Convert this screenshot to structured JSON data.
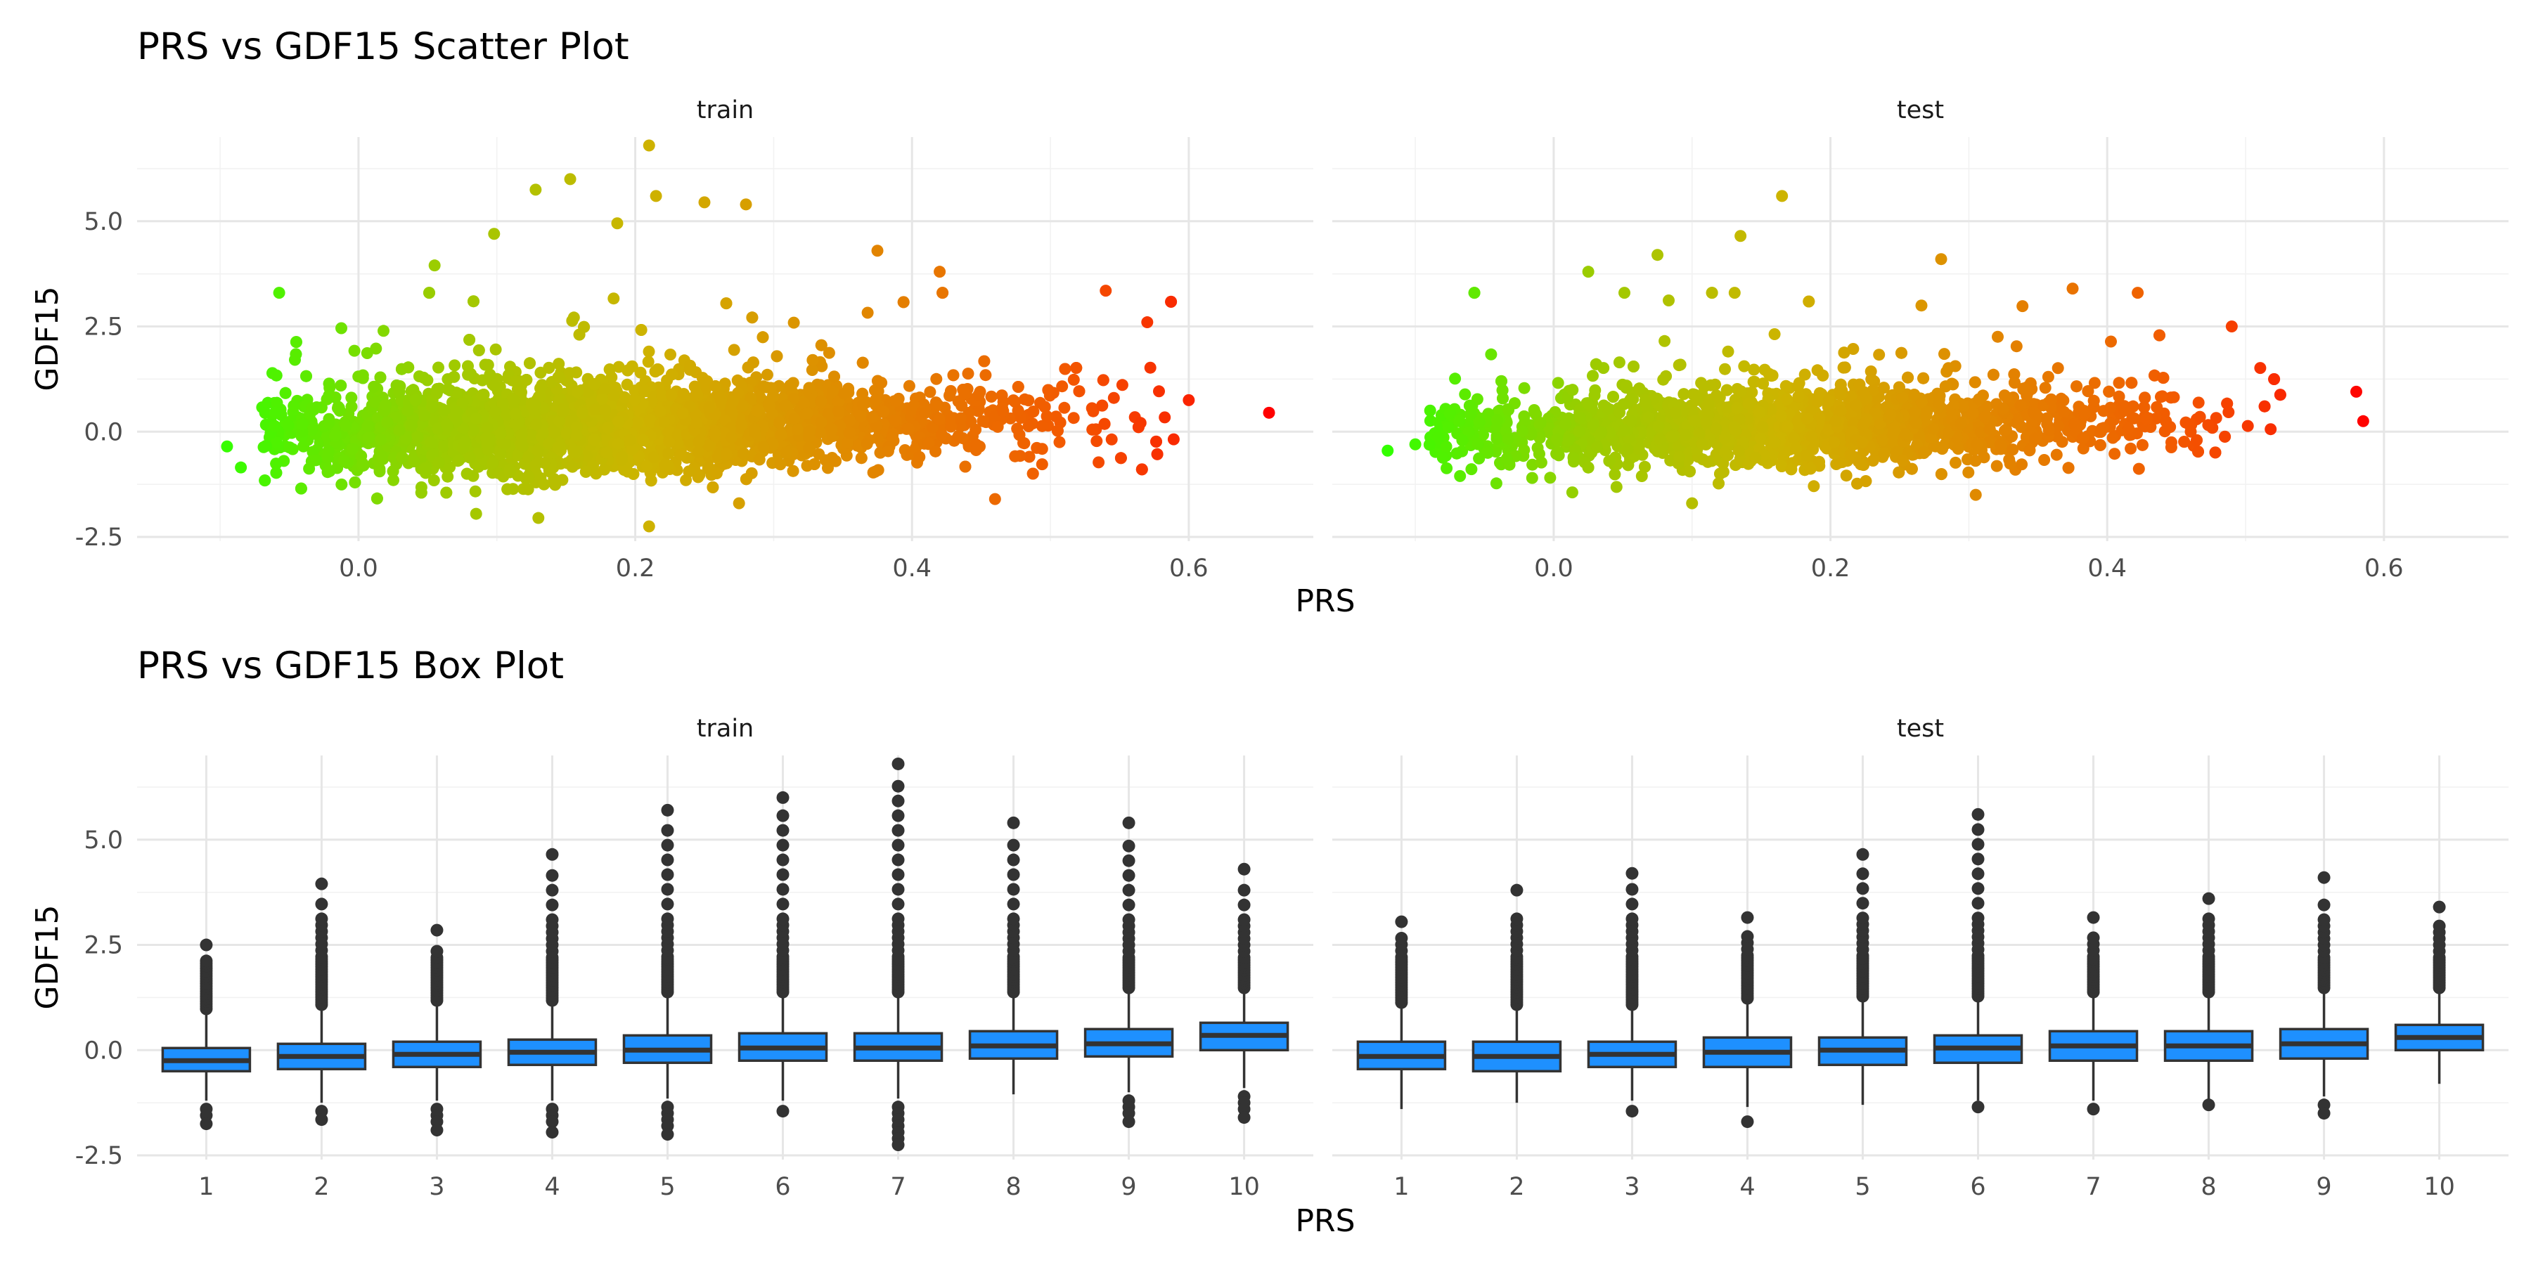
{
  "chart_data": [
    {
      "type": "scatter",
      "title": "PRS vs GDF15 Scatter Plot",
      "xlabel": "PRS",
      "ylabel": "GDF15",
      "facets": [
        "train",
        "test"
      ],
      "xlim": [
        -0.16,
        0.69
      ],
      "ylim": [
        -2.6,
        7.0
      ],
      "xticks": [
        0.0,
        0.2,
        0.4,
        0.6
      ],
      "xtick_labels": [
        "0.0",
        "0.2",
        "0.4",
        "0.6"
      ],
      "yticks": [
        -2.5,
        0.0,
        2.5,
        5.0
      ],
      "ytick_labels": [
        "-2.5",
        "0.0",
        "2.5",
        "5.0"
      ],
      "grid": true,
      "color_gradient": [
        "#33ff00",
        "#9acd00",
        "#cdb400",
        "#e08a00",
        "#f25a00",
        "#ff0000"
      ],
      "series": [
        {
          "facet": "train",
          "x_range": [
            -0.1,
            0.66
          ],
          "y_center": 0.1,
          "y_slope": 0.6,
          "y_spread": 0.55,
          "outliers": [
            {
              "x": 0.21,
              "y": 6.8
            },
            {
              "x": 0.153,
              "y": 6.0
            },
            {
              "x": 0.128,
              "y": 5.75
            },
            {
              "x": 0.215,
              "y": 5.6
            },
            {
              "x": 0.25,
              "y": 5.45
            },
            {
              "x": 0.28,
              "y": 5.4
            },
            {
              "x": 0.187,
              "y": 4.95
            },
            {
              "x": 0.098,
              "y": 4.7
            },
            {
              "x": 0.375,
              "y": 4.3
            },
            {
              "x": 0.055,
              "y": 3.95
            },
            {
              "x": 0.42,
              "y": 3.8
            },
            {
              "x": 0.54,
              "y": 3.35
            },
            {
              "x": 0.57,
              "y": 2.6
            },
            {
              "x": 0.6,
              "y": 0.75
            },
            {
              "x": 0.658,
              "y": 0.45
            },
            {
              "x": -0.095,
              "y": -0.35
            },
            {
              "x": -0.085,
              "y": -0.85
            },
            {
              "x": 0.21,
              "y": -2.25
            },
            {
              "x": 0.13,
              "y": -2.05
            },
            {
              "x": 0.085,
              "y": -1.95
            },
            {
              "x": 0.46,
              "y": -1.6
            },
            {
              "x": 0.275,
              "y": -1.7
            }
          ]
        },
        {
          "facet": "test",
          "x_range": [
            -0.12,
            0.59
          ],
          "y_center": 0.1,
          "y_slope": 0.6,
          "y_spread": 0.5,
          "outliers": [
            {
              "x": 0.165,
              "y": 5.6
            },
            {
              "x": 0.135,
              "y": 4.65
            },
            {
              "x": 0.075,
              "y": 4.2
            },
            {
              "x": 0.28,
              "y": 4.1
            },
            {
              "x": 0.025,
              "y": 3.8
            },
            {
              "x": 0.375,
              "y": 3.4
            },
            {
              "x": 0.49,
              "y": 2.5
            },
            {
              "x": 0.58,
              "y": 0.95
            },
            {
              "x": 0.585,
              "y": 0.25
            },
            {
              "x": -0.12,
              "y": -0.45
            },
            {
              "x": -0.1,
              "y": -0.3
            },
            {
              "x": 0.1,
              "y": -1.7
            },
            {
              "x": 0.305,
              "y": -1.5
            }
          ]
        }
      ]
    },
    {
      "type": "box",
      "title": "PRS vs GDF15 Box Plot",
      "xlabel": "PRS",
      "ylabel": "GDF15",
      "facets": [
        "train",
        "test"
      ],
      "categories": [
        "1",
        "2",
        "3",
        "4",
        "5",
        "6",
        "7",
        "8",
        "9",
        "10"
      ],
      "ylim": [
        -2.6,
        7.0
      ],
      "yticks": [
        -2.5,
        0.0,
        2.5,
        5.0
      ],
      "ytick_labels": [
        "-2.5",
        "0.0",
        "2.5",
        "5.0"
      ],
      "box_color": "#1e90ff",
      "grid": true,
      "series": [
        {
          "facet": "train",
          "q1": [
            -0.5,
            -0.45,
            -0.4,
            -0.35,
            -0.3,
            -0.25,
            -0.25,
            -0.2,
            -0.15,
            0.0
          ],
          "median": [
            -0.25,
            -0.15,
            -0.1,
            -0.05,
            0.0,
            0.05,
            0.05,
            0.1,
            0.15,
            0.35
          ],
          "q3": [
            0.05,
            0.15,
            0.2,
            0.25,
            0.35,
            0.4,
            0.4,
            0.45,
            0.5,
            0.65
          ],
          "whisker_low": [
            -1.2,
            -1.25,
            -1.2,
            -1.2,
            -1.15,
            -1.2,
            -1.15,
            -1.05,
            -1.0,
            -0.9
          ],
          "whisker_high": [
            0.9,
            1.0,
            1.1,
            1.1,
            1.3,
            1.3,
            1.3,
            1.3,
            1.4,
            1.4
          ],
          "outliers_high_max": [
            2.5,
            3.95,
            2.85,
            4.65,
            5.7,
            6.0,
            6.8,
            5.4,
            5.4,
            4.3
          ],
          "outliers_low_min": [
            -1.75,
            -1.65,
            -1.9,
            -1.95,
            -2.0,
            -1.45,
            -2.25,
            null,
            -1.7,
            -1.6
          ]
        },
        {
          "facet": "test",
          "q1": [
            -0.45,
            -0.5,
            -0.4,
            -0.4,
            -0.35,
            -0.3,
            -0.25,
            -0.25,
            -0.2,
            0.0
          ],
          "median": [
            -0.15,
            -0.15,
            -0.1,
            -0.05,
            0.0,
            0.05,
            0.1,
            0.1,
            0.15,
            0.3
          ],
          "q3": [
            0.2,
            0.2,
            0.2,
            0.3,
            0.3,
            0.35,
            0.45,
            0.45,
            0.5,
            0.6
          ],
          "whisker_low": [
            -1.4,
            -1.25,
            -1.2,
            -1.35,
            -1.3,
            -1.2,
            -1.2,
            -1.2,
            -1.1,
            -0.8
          ],
          "whisker_high": [
            1.05,
            1.0,
            1.0,
            1.15,
            1.2,
            1.2,
            1.3,
            1.3,
            1.4,
            1.4
          ],
          "outliers_high_max": [
            3.05,
            3.8,
            4.2,
            3.15,
            4.65,
            5.6,
            3.15,
            3.6,
            4.1,
            3.4
          ],
          "outliers_low_min": [
            null,
            null,
            -1.45,
            -1.7,
            null,
            -1.35,
            -1.4,
            -1.3,
            -1.5,
            null
          ]
        }
      ]
    }
  ]
}
